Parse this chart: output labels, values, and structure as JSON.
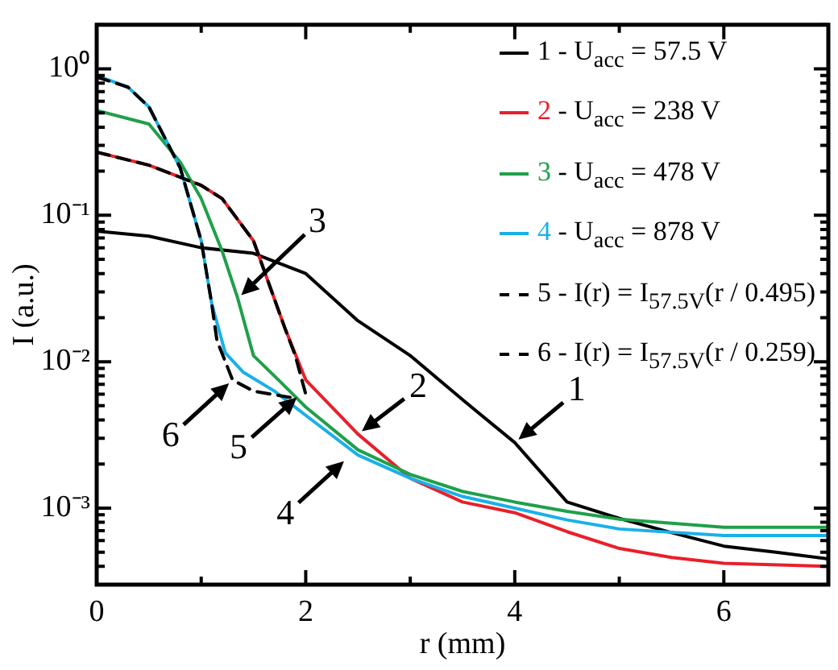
{
  "chart_data": {
    "type": "line",
    "xlabel": "r (mm)",
    "ylabel": "I (a.u.)",
    "log": "y",
    "grid": false,
    "legend": "top right",
    "marker": "none",
    "xlim": [
      0,
      7
    ],
    "xticks": [
      {
        "value": 0,
        "label": "0"
      },
      {
        "value": 1,
        "label": null
      },
      {
        "value": 2,
        "label": "2"
      },
      {
        "value": 3,
        "label": null
      },
      {
        "value": 4,
        "label": "4"
      },
      {
        "value": 5,
        "label": null
      },
      {
        "value": 6,
        "label": "6"
      },
      {
        "value": 7,
        "label": null
      }
    ],
    "ylim": [
      0.0003,
      2
    ],
    "yticks": [
      {
        "value": 0.0003,
        "label": null
      },
      {
        "value": 0.0004,
        "label": null
      },
      {
        "value": 0.0005,
        "label": null
      },
      {
        "value": 0.0006,
        "label": null
      },
      {
        "value": 0.0007,
        "label": null
      },
      {
        "value": 0.0008,
        "label": null
      },
      {
        "value": 0.0009,
        "label": null
      },
      {
        "value": 0.001,
        "label": "10⁻³"
      },
      {
        "value": 0.002,
        "label": null
      },
      {
        "value": 0.003,
        "label": null
      },
      {
        "value": 0.004,
        "label": null
      },
      {
        "value": 0.005,
        "label": null
      },
      {
        "value": 0.006,
        "label": null
      },
      {
        "value": 0.007,
        "label": null
      },
      {
        "value": 0.008,
        "label": null
      },
      {
        "value": 0.009,
        "label": null
      },
      {
        "value": 0.01,
        "label": "10⁻²"
      },
      {
        "value": 0.02,
        "label": null
      },
      {
        "value": 0.03,
        "label": null
      },
      {
        "value": 0.04,
        "label": null
      },
      {
        "value": 0.05,
        "label": null
      },
      {
        "value": 0.06,
        "label": null
      },
      {
        "value": 0.07,
        "label": null
      },
      {
        "value": 0.08,
        "label": null
      },
      {
        "value": 0.09,
        "label": null
      },
      {
        "value": 0.1,
        "label": "10⁻¹"
      },
      {
        "value": 0.2,
        "label": null
      },
      {
        "value": 0.3,
        "label": null
      },
      {
        "value": 0.4,
        "label": null
      },
      {
        "value": 0.5,
        "label": null
      },
      {
        "value": 0.6,
        "label": null
      },
      {
        "value": 0.7,
        "label": null
      },
      {
        "value": 0.8,
        "label": null
      },
      {
        "value": 0.9,
        "label": null
      },
      {
        "value": 1,
        "label": "10⁰"
      },
      {
        "value": 2,
        "label": null
      }
    ],
    "series": [
      {
        "name": "1 - U$_{acc}$ = 57.5 V",
        "color": "#000000",
        "line_style": "solid",
        "x": [
          0,
          0.5,
          1,
          1.5,
          2,
          2.5,
          3,
          3.5,
          4,
          4.5,
          5,
          5.5,
          6,
          6.5,
          7
        ],
        "values": [
          0.078,
          0.072,
          0.06,
          0.055,
          0.04,
          0.019,
          0.011,
          0.0055,
          0.0028,
          0.0011,
          0.00085,
          0.00068,
          0.00055,
          0.0005,
          0.00045
        ]
      },
      {
        "name": "2 - U$_{acc}$ = 238 V",
        "color": "#e8202a",
        "line_style": "solid",
        "x": [
          0,
          0.5,
          1,
          1.2,
          1.5,
          1.8,
          2,
          2.5,
          3,
          3.5,
          4,
          4.5,
          5,
          5.5,
          6,
          7
        ],
        "values": [
          0.27,
          0.22,
          0.16,
          0.13,
          0.067,
          0.017,
          0.0075,
          0.0032,
          0.0016,
          0.0011,
          0.00093,
          0.00069,
          0.00053,
          0.00046,
          0.00042,
          0.0004
        ]
      },
      {
        "name": "3 - U$_{acc}$ = 478 V",
        "color": "#1fa04a",
        "line_style": "solid",
        "x": [
          0,
          0.5,
          0.8,
          1,
          1.2,
          1.35,
          1.5,
          1.74,
          2,
          2.5,
          3,
          3.5,
          4,
          4.5,
          5,
          6,
          7
        ],
        "values": [
          0.52,
          0.42,
          0.23,
          0.13,
          0.057,
          0.027,
          0.011,
          0.0075,
          0.0049,
          0.0025,
          0.0017,
          0.0013,
          0.0011,
          0.00095,
          0.00084,
          0.00074,
          0.00074
        ]
      },
      {
        "name": "4 - U$_{acc}$ = 878 V",
        "color": "#1ab0e8",
        "line_style": "solid",
        "x": [
          0,
          0.3,
          0.5,
          0.8,
          1,
          1.1,
          1.23,
          1.4,
          1.7,
          2,
          2.5,
          3,
          3.5,
          4,
          4.5,
          5,
          6,
          7
        ],
        "values": [
          0.9,
          0.75,
          0.55,
          0.21,
          0.067,
          0.025,
          0.0115,
          0.0085,
          0.0063,
          0.0043,
          0.0023,
          0.0016,
          0.0012,
          0.001,
          0.00083,
          0.00072,
          0.00065,
          0.00065
        ]
      },
      {
        "name": "5 - I(r) = I$_{57.5V}$(r / 0.495)",
        "color": "#000000",
        "line_style": "dashed",
        "x": [
          0,
          0.5,
          1,
          1.2,
          1.5,
          1.8,
          1.9,
          2
        ],
        "values": [
          0.27,
          0.22,
          0.16,
          0.13,
          0.067,
          0.017,
          0.011,
          0.006
        ]
      },
      {
        "name": "6 - I(r) = I$_{57.5V}$(r / 0.259)",
        "color": "#000000",
        "line_style": "dashed",
        "x": [
          0,
          0.3,
          0.5,
          0.8,
          1,
          1.1,
          1.15,
          1.3,
          1.5,
          1.85
        ],
        "values": [
          0.88,
          0.75,
          0.55,
          0.21,
          0.067,
          0.025,
          0.014,
          0.0075,
          0.0063,
          0.0057
        ]
      }
    ],
    "annotations": [
      {
        "text": "1",
        "x": 4,
        "y": 0.0028
      },
      {
        "text": "2",
        "x": 2.5,
        "y": 0.0032
      },
      {
        "text": "3",
        "x": 1.35,
        "y": 0.027
      },
      {
        "text": "4",
        "x": 2.4,
        "y": 0.0022
      },
      {
        "text": "5",
        "x": 1.95,
        "y": 0.006
      },
      {
        "text": "6",
        "x": 1.3,
        "y": 0.0075
      }
    ]
  }
}
